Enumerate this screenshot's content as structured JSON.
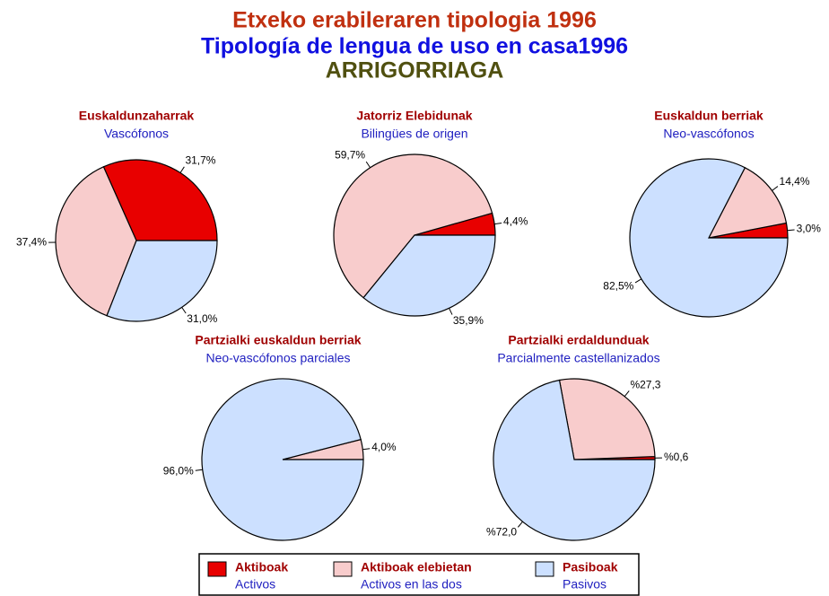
{
  "header": {
    "title": "Etxeko erabileraren tipologia 1996",
    "subtitle": "Tipología de lengua de uso en casa1996",
    "place": "ARRIGORRIAGA"
  },
  "legend": {
    "items": [
      {
        "name": "Aktiboak",
        "subname": "Activos",
        "color": "#e80000"
      },
      {
        "name": "Aktiboak elebietan",
        "subname": "Activos en las dos",
        "color": "#f8cccc"
      },
      {
        "name": "Pasiboak",
        "subname": "Pasivos",
        "color": "#cce0ff"
      }
    ]
  },
  "chart_data": [
    {
      "type": "pie",
      "title": "Euskaldunzaharrak",
      "subtitle": "Vascófonos",
      "values": [
        31.7,
        37.4,
        31.0
      ],
      "value_labels": [
        "31,7%",
        "37,4%",
        "31,0%"
      ]
    },
    {
      "type": "pie",
      "title": "Jatorriz Elebidunak",
      "subtitle": "Bilingües de origen",
      "values": [
        4.4,
        59.7,
        35.9
      ],
      "value_labels": [
        "4,4%",
        "59,7%",
        "35,9%"
      ]
    },
    {
      "type": "pie",
      "title": "Euskaldun berriak",
      "subtitle": "Neo-vascófonos",
      "values": [
        3.0,
        14.4,
        82.5
      ],
      "value_labels": [
        "3,0%",
        "14,4%",
        "82,5%"
      ]
    },
    {
      "type": "pie",
      "title": "Partzialki euskaldun berriak",
      "subtitle": "Neo-vascófonos parciales",
      "values": [
        null,
        4.0,
        96.0
      ],
      "value_labels": [
        null,
        "4,0%",
        "96,0%"
      ]
    },
    {
      "type": "pie",
      "title": "Partzialki erdaldunduak",
      "subtitle": "Parcialmente castellanizados",
      "values": [
        0.6,
        27.3,
        72.0
      ],
      "value_labels": [
        "%0,6",
        "%27,3",
        "%72,0"
      ]
    }
  ]
}
